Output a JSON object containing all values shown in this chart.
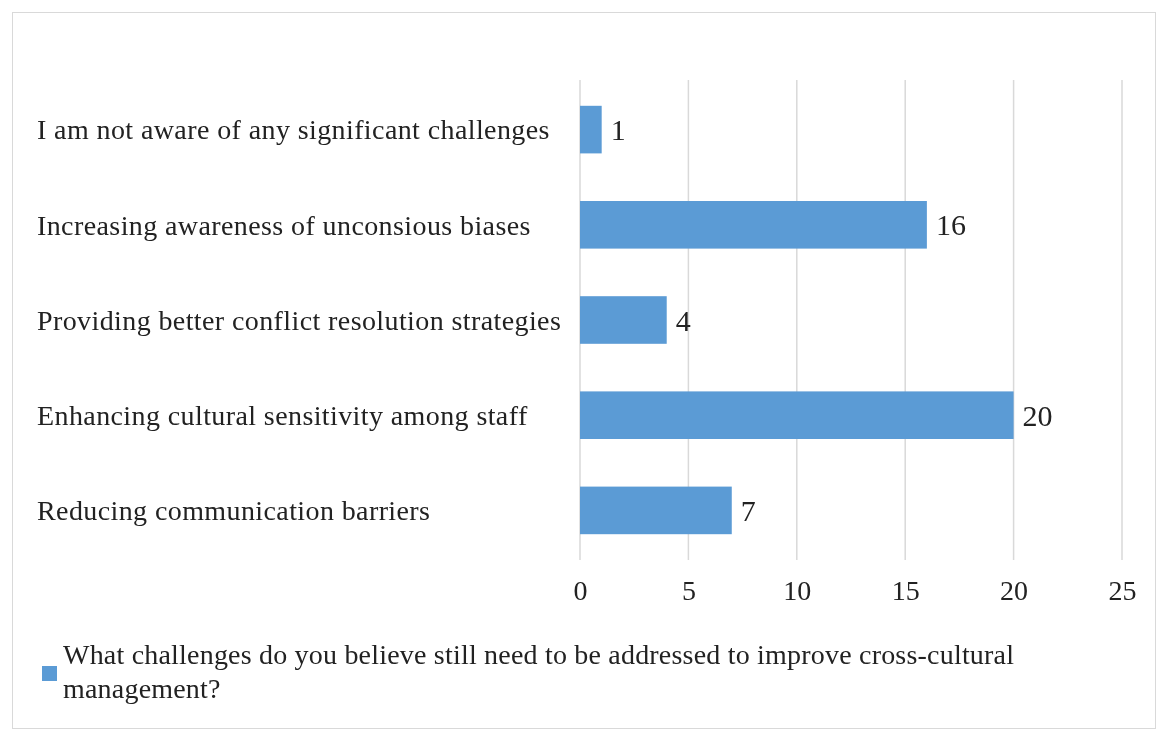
{
  "chart_data": {
    "type": "bar",
    "orientation": "horizontal",
    "categories": [
      "I am not aware of any significant challenges",
      "Increasing awareness of unconsious biases",
      "Providing better conflict resolution strategies",
      "Enhancing cultural sensitivity among staff",
      "Reducing communication barriers"
    ],
    "series": [
      {
        "name": "What challenges do you believe still need to be addressed to improve cross-cultural management?",
        "color": "#5b9bd5",
        "values": [
          1,
          16,
          4,
          20,
          7
        ]
      }
    ],
    "xlim": [
      0,
      25
    ],
    "xticks": [
      0,
      5,
      10,
      15,
      20,
      25
    ],
    "grid": "x",
    "data_labels": true,
    "legend": "bottom"
  }
}
